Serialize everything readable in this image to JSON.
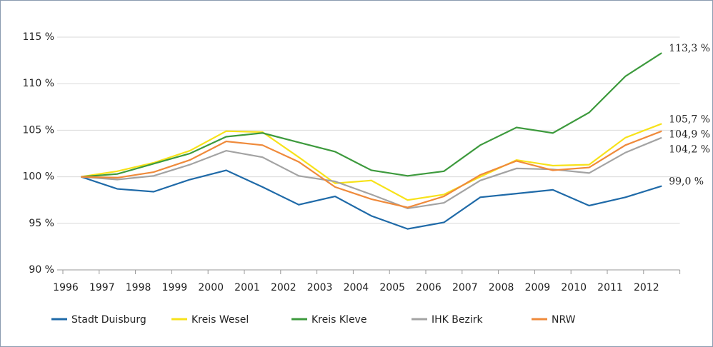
{
  "chart_data": {
    "type": "line",
    "categories": [
      "1996",
      "1997",
      "1998",
      "1999",
      "2000",
      "2001",
      "2002",
      "2003",
      "2004",
      "2005",
      "2006",
      "2007",
      "2008",
      "2009",
      "2010",
      "2011",
      "2012"
    ],
    "series": [
      {
        "name": "Stadt Duisburg",
        "color": "#1f6aa8",
        "values": [
          100,
          98.7,
          98.4,
          99.7,
          100.7,
          98.9,
          97.0,
          97.9,
          95.8,
          94.4,
          95.1,
          97.8,
          98.2,
          98.6,
          96.9,
          97.8,
          99.0
        ],
        "value_labels": [
          null,
          null,
          null,
          null,
          null,
          null,
          null,
          null,
          null,
          null,
          null,
          null,
          null,
          null,
          null,
          null,
          "99,0 %"
        ]
      },
      {
        "name": "Kreis Wesel",
        "color": "#f7e21a",
        "values": [
          100,
          100.6,
          101.5,
          102.8,
          104.9,
          104.8,
          102.1,
          99.3,
          99.6,
          97.5,
          98.1,
          100.0,
          101.8,
          101.2,
          101.3,
          104.2,
          105.7
        ],
        "value_labels": [
          null,
          null,
          null,
          null,
          null,
          null,
          null,
          null,
          null,
          null,
          null,
          null,
          null,
          null,
          null,
          null,
          "105,7 %"
        ]
      },
      {
        "name": "Kreis Kleve",
        "color": "#3d9a3d",
        "values": [
          100,
          100.3,
          101.4,
          102.5,
          104.3,
          104.7,
          103.7,
          102.7,
          100.7,
          100.1,
          100.6,
          103.4,
          105.3,
          104.7,
          106.9,
          110.8,
          113.3
        ],
        "value_labels": [
          null,
          null,
          null,
          null,
          null,
          null,
          null,
          null,
          null,
          null,
          null,
          null,
          null,
          null,
          null,
          null,
          "113,3 %"
        ]
      },
      {
        "name": "IHK Bezirk",
        "color": "#a3a3a3",
        "values": [
          100,
          99.7,
          100.1,
          101.3,
          102.8,
          102.1,
          100.1,
          99.5,
          98.1,
          96.6,
          97.2,
          99.6,
          100.9,
          100.8,
          100.4,
          102.6,
          104.2
        ],
        "value_labels": [
          null,
          null,
          null,
          null,
          null,
          null,
          null,
          null,
          null,
          null,
          null,
          null,
          null,
          null,
          null,
          null,
          "104,2 %"
        ]
      },
      {
        "name": "NRW",
        "color": "#ef8a3b",
        "values": [
          100,
          99.9,
          100.5,
          101.8,
          103.8,
          103.4,
          101.6,
          98.9,
          97.6,
          96.7,
          97.9,
          100.2,
          101.7,
          100.7,
          101.0,
          103.4,
          104.9
        ],
        "value_labels": [
          null,
          null,
          null,
          null,
          null,
          null,
          null,
          null,
          null,
          null,
          null,
          null,
          null,
          null,
          null,
          null,
          "104,9 %"
        ]
      }
    ],
    "ylim": [
      90,
      115
    ],
    "yticks": [
      {
        "value": 90,
        "label": "90 %"
      },
      {
        "value": 95,
        "label": "95 %"
      },
      {
        "value": 100,
        "label": "100 %"
      },
      {
        "value": 105,
        "label": "105 %"
      },
      {
        "value": 110,
        "label": "110 %"
      },
      {
        "value": 115,
        "label": "115 %"
      }
    ],
    "grid": true
  }
}
